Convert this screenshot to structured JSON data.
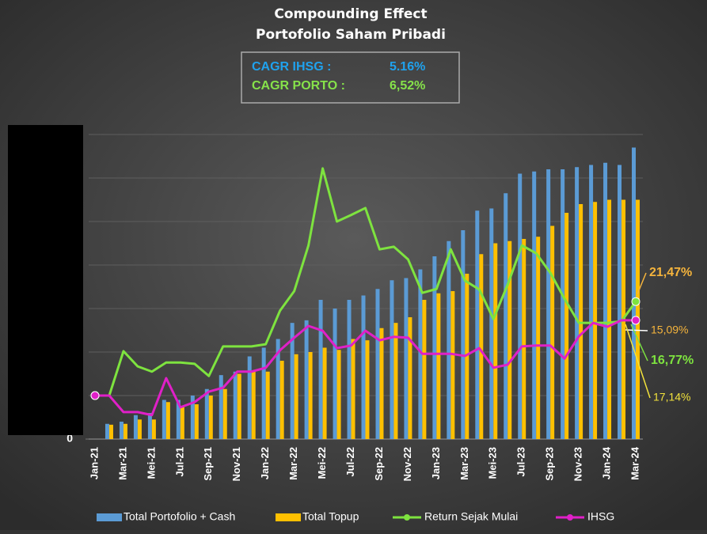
{
  "chart_data": {
    "type": "bar",
    "title": [
      "Compounding Effect",
      "Portofolio Saham Pribadi"
    ],
    "cagr": [
      {
        "label": "CAGR IHSG    :",
        "value": "5.16%",
        "color": "#1fa2ee"
      },
      {
        "label": "CAGR PORTO :",
        "value": "6,52%",
        "color": "#86e24a"
      }
    ],
    "categories": [
      "Jan-21",
      null,
      "Mar-21",
      null,
      "Mei-21",
      null,
      "Jul-21",
      null,
      "Sep-21",
      null,
      "Nov-21",
      null,
      "Jan-22",
      null,
      "Mar-22",
      null,
      "Mei-22",
      null,
      "Jul-22",
      null,
      "Sep-22",
      null,
      "Nov-22",
      null,
      "Jan-23",
      null,
      "Mar-23",
      null,
      "Mei-23",
      null,
      "Jul-23",
      null,
      "Sep-23",
      null,
      "Nov-23",
      null,
      "Jan-24",
      null,
      "Mar-24"
    ],
    "series": [
      {
        "name": "Total Portofolio + Cash",
        "type": "bar",
        "color": "#5b9bd5",
        "values": [
          0,
          0.35,
          0.4,
          0.55,
          0.6,
          0.9,
          0.9,
          1.0,
          1.15,
          1.47,
          1.55,
          1.9,
          2.1,
          2.3,
          2.67,
          2.73,
          3.2,
          3.0,
          3.2,
          3.3,
          3.45,
          3.65,
          3.7,
          3.9,
          4.2,
          4.55,
          4.8,
          5.25,
          5.3,
          5.65,
          6.1,
          6.15,
          6.2,
          6.2,
          6.25,
          6.3,
          6.35,
          6.3,
          6.7
        ]
      },
      {
        "name": "Total Topup",
        "type": "bar",
        "color": "#ffc000",
        "values": [
          0,
          0.33,
          0.35,
          0.45,
          0.45,
          0.85,
          0.75,
          0.8,
          1.0,
          1.15,
          1.5,
          1.55,
          1.55,
          1.8,
          1.95,
          2.0,
          2.1,
          2.05,
          2.3,
          2.27,
          2.55,
          2.67,
          2.8,
          3.2,
          3.35,
          3.4,
          3.8,
          4.25,
          4.5,
          4.55,
          4.6,
          4.65,
          4.9,
          5.2,
          5.4,
          5.45,
          5.5,
          5.5,
          5.5
        ]
      },
      {
        "name": "Return Sejak Mulai",
        "type": "line",
        "color": "#7ee33f",
        "values": [
          1.0,
          1.0,
          2.02,
          1.67,
          1.55,
          1.76,
          1.76,
          1.73,
          1.45,
          2.13,
          2.13,
          2.13,
          2.18,
          2.95,
          3.4,
          4.45,
          6.22,
          5.0,
          5.15,
          5.31,
          4.36,
          4.42,
          4.13,
          3.36,
          3.45,
          4.36,
          3.64,
          3.44,
          2.76,
          3.55,
          4.45,
          4.27,
          3.82,
          3.22,
          2.67,
          2.67,
          2.67,
          2.71,
          3.16
        ]
      },
      {
        "name": "IHSG",
        "type": "line",
        "color": "#e020c8",
        "values": [
          1.0,
          1.0,
          0.62,
          0.62,
          0.55,
          1.4,
          0.73,
          0.85,
          1.09,
          1.18,
          1.55,
          1.55,
          1.64,
          2.04,
          2.33,
          2.6,
          2.49,
          2.09,
          2.15,
          2.49,
          2.27,
          2.35,
          2.33,
          1.96,
          1.96,
          1.96,
          1.91,
          2.09,
          1.64,
          1.71,
          2.13,
          2.15,
          2.15,
          1.85,
          2.36,
          2.67,
          2.58,
          2.73,
          2.73
        ]
      }
    ],
    "ylim": [
      0,
      7
    ],
    "yticks": [
      0
    ],
    "grid": true,
    "annotations": [
      {
        "text": "21,47%",
        "color": "#f5b43c"
      },
      {
        "text": "15,09%",
        "color": "#f5b43c"
      },
      {
        "text": "16,77%",
        "color": "#7ee33f"
      },
      {
        "text": "17,14%",
        "color": "#f2e23c"
      }
    ]
  }
}
